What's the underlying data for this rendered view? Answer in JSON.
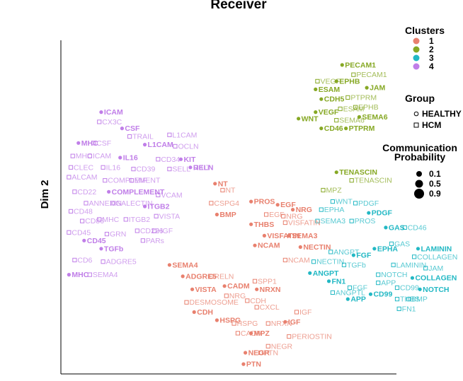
{
  "chart_data": {
    "type": "scatter",
    "title": "Receiver",
    "xlabel": "",
    "ylabel": "Dim 2",
    "xlim": [
      0,
      100
    ],
    "ylim": [
      0,
      100
    ],
    "grid": false,
    "legend_position": "right",
    "colors": {
      "1": "#e8806e",
      "2": "#86a824",
      "3": "#22b8c4",
      "4": "#c07ee8"
    },
    "legend": {
      "clusters_title": "Clusters",
      "clusters": [
        "1",
        "2",
        "3",
        "4"
      ],
      "group_title": "Group",
      "groups": [
        "HEALTHY",
        "HCM"
      ],
      "prob_title": [
        "Communication",
        "Probability"
      ],
      "probs": [
        "0.1",
        "0.5",
        "0.9"
      ]
    },
    "points": [
      {
        "label": "PECAM1",
        "cluster": "2",
        "group": "HEALTHY",
        "x": 73.0,
        "y": 93.5
      },
      {
        "label": "PECAM1",
        "cluster": "2",
        "group": "HCM",
        "x": 76.0,
        "y": 90.5
      },
      {
        "label": "VEGF",
        "cluster": "2",
        "group": "HCM",
        "x": 66.5,
        "y": 88.5
      },
      {
        "label": "EPHB",
        "cluster": "2",
        "group": "HEALTHY",
        "x": 71.5,
        "y": 88.5
      },
      {
        "label": "ESAM",
        "cluster": "2",
        "group": "HEALTHY",
        "x": 66.0,
        "y": 86.0
      },
      {
        "label": "JAM",
        "cluster": "2",
        "group": "HEALTHY",
        "x": 79.5,
        "y": 86.5
      },
      {
        "label": "CDH5",
        "cluster": "2",
        "group": "HEALTHY",
        "x": 67.5,
        "y": 83.0
      },
      {
        "label": "PTPRM",
        "cluster": "2",
        "group": "HCM",
        "x": 74.5,
        "y": 83.5
      },
      {
        "label": "ESAM",
        "cluster": "2",
        "group": "HCM",
        "x": 72.5,
        "y": 80.0
      },
      {
        "label": "EPHB",
        "cluster": "2",
        "group": "HCM",
        "x": 76.5,
        "y": 80.5
      },
      {
        "label": "VEGF",
        "cluster": "2",
        "group": "HEALTHY",
        "x": 66.0,
        "y": 79.0
      },
      {
        "label": "SEMA6",
        "cluster": "2",
        "group": "HEALTHY",
        "x": 77.5,
        "y": 77.5
      },
      {
        "label": "WNT",
        "cluster": "2",
        "group": "HEALTHY",
        "x": 61.5,
        "y": 77.0
      },
      {
        "label": "SEMA6",
        "cluster": "2",
        "group": "HCM",
        "x": 71.5,
        "y": 76.5
      },
      {
        "label": "CD46",
        "cluster": "2",
        "group": "HEALTHY",
        "x": 67.5,
        "y": 74.0
      },
      {
        "label": "PTPRM",
        "cluster": "2",
        "group": "HEALTHY",
        "x": 74.0,
        "y": 74.0
      },
      {
        "label": "TENASCIN",
        "cluster": "2",
        "group": "HEALTHY",
        "x": 71.5,
        "y": 60.5
      },
      {
        "label": "TENASCIN",
        "cluster": "2",
        "group": "HCM",
        "x": 75.5,
        "y": 58.0
      },
      {
        "label": "MPZ",
        "cluster": "2",
        "group": "HCM",
        "x": 68.0,
        "y": 55.0
      },
      {
        "label": "WNT",
        "cluster": "3",
        "group": "HCM",
        "x": 70.5,
        "y": 51.5
      },
      {
        "label": "PDGF",
        "cluster": "3",
        "group": "HCM",
        "x": 76.5,
        "y": 51.0
      },
      {
        "label": "EPHA",
        "cluster": "3",
        "group": "HCM",
        "x": 67.5,
        "y": 49.0
      },
      {
        "label": "PDGF",
        "cluster": "3",
        "group": "HEALTHY",
        "x": 80.0,
        "y": 48.0
      },
      {
        "label": "SEMA3",
        "cluster": "3",
        "group": "HCM",
        "x": 66.5,
        "y": 45.5
      },
      {
        "label": "PROS",
        "cluster": "3",
        "group": "HCM",
        "x": 75.5,
        "y": 45.5
      },
      {
        "label": "GAS",
        "cluster": "3",
        "group": "HEALTHY",
        "x": 84.5,
        "y": 43.5
      },
      {
        "label": "CD46",
        "cluster": "3",
        "group": "HCM",
        "x": 89.5,
        "y": 43.5
      },
      {
        "label": "GAS",
        "cluster": "3",
        "group": "HCM",
        "x": 86.0,
        "y": 38.5
      },
      {
        "label": "EPHA",
        "cluster": "3",
        "group": "HEALTHY",
        "x": 81.5,
        "y": 37.0
      },
      {
        "label": "LAMININ",
        "cluster": "3",
        "group": "HEALTHY",
        "x": 93.0,
        "y": 37.0
      },
      {
        "label": "ANGPT",
        "cluster": "3",
        "group": "HCM",
        "x": 70.0,
        "y": 36.0
      },
      {
        "label": "FGF",
        "cluster": "3",
        "group": "HEALTHY",
        "x": 76.0,
        "y": 35.0
      },
      {
        "label": "COLLAGEN",
        "cluster": "3",
        "group": "HCM",
        "x": 92.0,
        "y": 34.5
      },
      {
        "label": "NECTIN",
        "cluster": "3",
        "group": "HCM",
        "x": 65.5,
        "y": 33.0
      },
      {
        "label": "TGFb",
        "cluster": "3",
        "group": "HCM",
        "x": 73.5,
        "y": 32.0
      },
      {
        "label": "LAMININ",
        "cluster": "3",
        "group": "HCM",
        "x": 86.5,
        "y": 32.0
      },
      {
        "label": "JAM",
        "cluster": "3",
        "group": "HCM",
        "x": 95.0,
        "y": 31.0
      },
      {
        "label": "ANGPT",
        "cluster": "3",
        "group": "HEALTHY",
        "x": 64.5,
        "y": 29.5
      },
      {
        "label": "NOTCH",
        "cluster": "3",
        "group": "HCM",
        "x": 82.5,
        "y": 29.0
      },
      {
        "label": "COLLAGEN",
        "cluster": "3",
        "group": "HEALTHY",
        "x": 91.5,
        "y": 28.0
      },
      {
        "label": "FN1",
        "cluster": "3",
        "group": "HEALTHY",
        "x": 69.5,
        "y": 27.0
      },
      {
        "label": "APP",
        "cluster": "3",
        "group": "HCM",
        "x": 82.5,
        "y": 26.5
      },
      {
        "label": "FGF",
        "cluster": "3",
        "group": "HCM",
        "x": 75.0,
        "y": 25.0
      },
      {
        "label": "CD99",
        "cluster": "3",
        "group": "HCM",
        "x": 87.5,
        "y": 25.0
      },
      {
        "label": "NOTCH",
        "cluster": "3",
        "group": "HEALTHY",
        "x": 93.5,
        "y": 24.5
      },
      {
        "label": "ANGPTL",
        "cluster": "3",
        "group": "HCM",
        "x": 70.5,
        "y": 23.5
      },
      {
        "label": "CD99",
        "cluster": "3",
        "group": "HEALTHY",
        "x": 80.5,
        "y": 23.0
      },
      {
        "label": "APP",
        "cluster": "3",
        "group": "HEALTHY",
        "x": 74.5,
        "y": 21.5
      },
      {
        "label": "THBS",
        "cluster": "3",
        "group": "HCM",
        "x": 87.5,
        "y": 21.5
      },
      {
        "label": "BMP",
        "cluster": "3",
        "group": "HCM",
        "x": 90.5,
        "y": 21.5
      },
      {
        "label": "FN1",
        "cluster": "3",
        "group": "HCM",
        "x": 88.0,
        "y": 18.5
      },
      {
        "label": "NT",
        "cluster": "1",
        "group": "HEALTHY",
        "x": 39.5,
        "y": 57.0
      },
      {
        "label": "NT",
        "cluster": "1",
        "group": "HCM",
        "x": 41.5,
        "y": 55.0
      },
      {
        "label": "PROS",
        "cluster": "1",
        "group": "HEALTHY",
        "x": 49.0,
        "y": 51.5
      },
      {
        "label": "CSPG4",
        "cluster": "1",
        "group": "HCM",
        "x": 38.5,
        "y": 51.0
      },
      {
        "label": "EGF",
        "cluster": "1",
        "group": "HEALTHY",
        "x": 56.0,
        "y": 50.5
      },
      {
        "label": "NRG",
        "cluster": "1",
        "group": "HEALTHY",
        "x": 60.0,
        "y": 49.0
      },
      {
        "label": "BMP",
        "cluster": "1",
        "group": "HEALTHY",
        "x": 40.0,
        "y": 47.5
      },
      {
        "label": "EGF",
        "cluster": "1",
        "group": "HCM",
        "x": 53.0,
        "y": 47.5
      },
      {
        "label": "NRG",
        "cluster": "1",
        "group": "HCM",
        "x": 57.5,
        "y": 47.0
      },
      {
        "label": "THBS",
        "cluster": "1",
        "group": "HEALTHY",
        "x": 49.0,
        "y": 44.5
      },
      {
        "label": "VISFATIN",
        "cluster": "1",
        "group": "HCM",
        "x": 58.0,
        "y": 45.0
      },
      {
        "label": "VISFATIN",
        "cluster": "1",
        "group": "HEALTHY",
        "x": 52.5,
        "y": 41.0
      },
      {
        "label": "SEMA3",
        "cluster": "1",
        "group": "HEALTHY",
        "x": 59.0,
        "y": 41.0
      },
      {
        "label": "NCAM",
        "cluster": "1",
        "group": "HEALTHY",
        "x": 50.0,
        "y": 38.0
      },
      {
        "label": "NECTIN",
        "cluster": "1",
        "group": "HEALTHY",
        "x": 62.0,
        "y": 37.5
      },
      {
        "label": "NCAM",
        "cluster": "1",
        "group": "HCM",
        "x": 58.0,
        "y": 33.5
      },
      {
        "label": "SEMA4",
        "cluster": "1",
        "group": "HEALTHY",
        "x": 27.5,
        "y": 32.0
      },
      {
        "label": "ADGRE5",
        "cluster": "1",
        "group": "HEALTHY",
        "x": 31.0,
        "y": 28.5
      },
      {
        "label": "RELN",
        "cluster": "1",
        "group": "HCM",
        "x": 38.5,
        "y": 28.5
      },
      {
        "label": "SPP1",
        "cluster": "1",
        "group": "HCM",
        "x": 50.0,
        "y": 27.0
      },
      {
        "label": "CADM",
        "cluster": "1",
        "group": "HEALTHY",
        "x": 42.0,
        "y": 25.5
      },
      {
        "label": "NRXN",
        "cluster": "1",
        "group": "HEALTHY",
        "x": 50.5,
        "y": 24.5
      },
      {
        "label": "VISTA",
        "cluster": "1",
        "group": "HEALTHY",
        "x": 33.5,
        "y": 24.5
      },
      {
        "label": "NRG",
        "cluster": "1",
        "group": "HCM",
        "x": 42.5,
        "y": 22.5
      },
      {
        "label": "DESMOSOME",
        "cluster": "1",
        "group": "HCM",
        "x": 32.0,
        "y": 20.5
      },
      {
        "label": "CDH",
        "cluster": "1",
        "group": "HCM",
        "x": 48.0,
        "y": 21.0
      },
      {
        "label": "CXCL",
        "cluster": "1",
        "group": "HCM",
        "x": 50.5,
        "y": 19.0
      },
      {
        "label": "CDH",
        "cluster": "1",
        "group": "HEALTHY",
        "x": 34.0,
        "y": 17.5
      },
      {
        "label": "IGF",
        "cluster": "1",
        "group": "HCM",
        "x": 61.0,
        "y": 17.5
      },
      {
        "label": "HSPG",
        "cluster": "1",
        "group": "HEALTHY",
        "x": 40.0,
        "y": 15.0
      },
      {
        "label": "HSPG",
        "cluster": "1",
        "group": "HCM",
        "x": 44.5,
        "y": 14.0
      },
      {
        "label": "NRXN",
        "cluster": "1",
        "group": "HCM",
        "x": 53.5,
        "y": 14.0
      },
      {
        "label": "IGF",
        "cluster": "1",
        "group": "HEALTHY",
        "x": 58.0,
        "y": 14.5
      },
      {
        "label": "CADM",
        "cluster": "1",
        "group": "HCM",
        "x": 45.5,
        "y": 11.0
      },
      {
        "label": "MPZ",
        "cluster": "1",
        "group": "HEALTHY",
        "x": 49.0,
        "y": 11.0
      },
      {
        "label": "PERIOSTIN",
        "cluster": "1",
        "group": "HCM",
        "x": 59.0,
        "y": 10.0
      },
      {
        "label": "NEGR",
        "cluster": "1",
        "group": "HCM",
        "x": 53.5,
        "y": 7.0
      },
      {
        "label": "NEGR",
        "cluster": "1",
        "group": "HEALTHY",
        "x": 47.5,
        "y": 5.0
      },
      {
        "label": "PTN",
        "cluster": "1",
        "group": "HCM",
        "x": 51.5,
        "y": 5.0
      },
      {
        "label": "PTN",
        "cluster": "1",
        "group": "HEALTHY",
        "x": 47.0,
        "y": 1.5
      },
      {
        "label": "ICAM",
        "cluster": "4",
        "group": "HEALTHY",
        "x": 9.5,
        "y": 79.0
      },
      {
        "label": "CX3C",
        "cluster": "4",
        "group": "HCM",
        "x": 9.0,
        "y": 76.0
      },
      {
        "label": "CSF",
        "cluster": "4",
        "group": "HEALTHY",
        "x": 15.0,
        "y": 74.0
      },
      {
        "label": "L1CAM",
        "cluster": "4",
        "group": "HCM",
        "x": 27.5,
        "y": 72.0
      },
      {
        "label": "TRAIL",
        "cluster": "4",
        "group": "HCM",
        "x": 17.0,
        "y": 71.5
      },
      {
        "label": "MHC",
        "cluster": "4",
        "group": "HEALTHY",
        "x": 3.5,
        "y": 69.5
      },
      {
        "label": "CSF",
        "cluster": "4",
        "group": "HCM",
        "x": 7.5,
        "y": 69.5
      },
      {
        "label": "L1CAM",
        "cluster": "4",
        "group": "HEALTHY",
        "x": 21.0,
        "y": 69.0
      },
      {
        "label": "OCLN",
        "cluster": "4",
        "group": "HCM",
        "x": 29.0,
        "y": 68.5
      },
      {
        "label": "MHC",
        "cluster": "4",
        "group": "HCM",
        "x": 2.0,
        "y": 65.5
      },
      {
        "label": "ICAM",
        "cluster": "4",
        "group": "HCM",
        "x": 6.5,
        "y": 65.5
      },
      {
        "label": "IL16",
        "cluster": "4",
        "group": "HEALTHY",
        "x": 14.5,
        "y": 65.0
      },
      {
        "label": "CD34",
        "cluster": "4",
        "group": "HCM",
        "x": 24.5,
        "y": 64.5
      },
      {
        "label": "KIT",
        "cluster": "4",
        "group": "HEALTHY",
        "x": 30.5,
        "y": 64.5
      },
      {
        "label": "CLEC",
        "cluster": "4",
        "group": "HCM",
        "x": 1.5,
        "y": 62.0
      },
      {
        "label": "IL16",
        "cluster": "4",
        "group": "HCM",
        "x": 10.0,
        "y": 62.0
      },
      {
        "label": "CD39",
        "cluster": "4",
        "group": "HCM",
        "x": 18.0,
        "y": 61.5
      },
      {
        "label": "SELL",
        "cluster": "4",
        "group": "HCM",
        "x": 27.5,
        "y": 61.5
      },
      {
        "label": "KIT",
        "cluster": "4",
        "group": "HCM",
        "x": 34.5,
        "y": 62.0
      },
      {
        "label": "RELN",
        "cluster": "4",
        "group": "HEALTHY",
        "x": 33.0,
        "y": 62.0
      },
      {
        "label": "ALCAM",
        "cluster": "4",
        "group": "HCM",
        "x": 1.0,
        "y": 59.0
      },
      {
        "label": "COMPLEMENT",
        "cluster": "4",
        "group": "HCM",
        "x": 10.5,
        "y": 58.0
      },
      {
        "label": "MIF",
        "cluster": "4",
        "group": "HCM",
        "x": 17.5,
        "y": 58.0
      },
      {
        "label": "CD22",
        "cluster": "4",
        "group": "HCM",
        "x": 2.5,
        "y": 54.5
      },
      {
        "label": "COMPLEMENT",
        "cluster": "4",
        "group": "HEALTHY",
        "x": 11.5,
        "y": 54.5
      },
      {
        "label": "VCAM",
        "cluster": "4",
        "group": "HCM",
        "x": 24.5,
        "y": 53.5
      },
      {
        "label": "ANNEXIN",
        "cluster": "4",
        "group": "HCM",
        "x": 5.5,
        "y": 51.0
      },
      {
        "label": "GALECTIN",
        "cluster": "4",
        "group": "HCM",
        "x": 12.5,
        "y": 51.0
      },
      {
        "label": "CD48",
        "cluster": "4",
        "group": "HCM",
        "x": 1.5,
        "y": 48.5
      },
      {
        "label": "CD86",
        "cluster": "4",
        "group": "HCM",
        "x": 4.5,
        "y": 45.5
      },
      {
        "label": "MHC",
        "cluster": "4",
        "group": "HCM",
        "x": 9.0,
        "y": 46.0
      },
      {
        "label": "ITGB2",
        "cluster": "4",
        "group": "HCM",
        "x": 16.0,
        "y": 46.0
      },
      {
        "label": "ITGB2",
        "cluster": "4",
        "group": "HEALTHY",
        "x": 21.0,
        "y": 50.0
      },
      {
        "label": "VISTA",
        "cluster": "4",
        "group": "HCM",
        "x": 24.0,
        "y": 47.0
      },
      {
        "label": "CD226",
        "cluster": "4",
        "group": "HCM",
        "x": 19.0,
        "y": 42.5
      },
      {
        "label": "HGF",
        "cluster": "4",
        "group": "HCM",
        "x": 23.5,
        "y": 42.5
      },
      {
        "label": "CD45",
        "cluster": "4",
        "group": "HCM",
        "x": 1.0,
        "y": 42.0
      },
      {
        "label": "GRN",
        "cluster": "4",
        "group": "HCM",
        "x": 11.0,
        "y": 41.5
      },
      {
        "label": "CD45",
        "cluster": "4",
        "group": "HEALTHY",
        "x": 5.0,
        "y": 39.5
      },
      {
        "label": "PARs",
        "cluster": "4",
        "group": "HCM",
        "x": 20.5,
        "y": 39.5
      },
      {
        "label": "TGFb",
        "cluster": "4",
        "group": "HEALTHY",
        "x": 9.5,
        "y": 37.0
      },
      {
        "label": "CD6",
        "cluster": "4",
        "group": "HCM",
        "x": 2.5,
        "y": 33.5
      },
      {
        "label": "ADGRE5",
        "cluster": "4",
        "group": "HCM",
        "x": 10.0,
        "y": 33.0
      },
      {
        "label": "MHC",
        "cluster": "4",
        "group": "HEALTHY",
        "x": 1.0,
        "y": 29.0
      },
      {
        "label": "SEMA4",
        "cluster": "4",
        "group": "HCM",
        "x": 6.5,
        "y": 29.0
      }
    ]
  }
}
